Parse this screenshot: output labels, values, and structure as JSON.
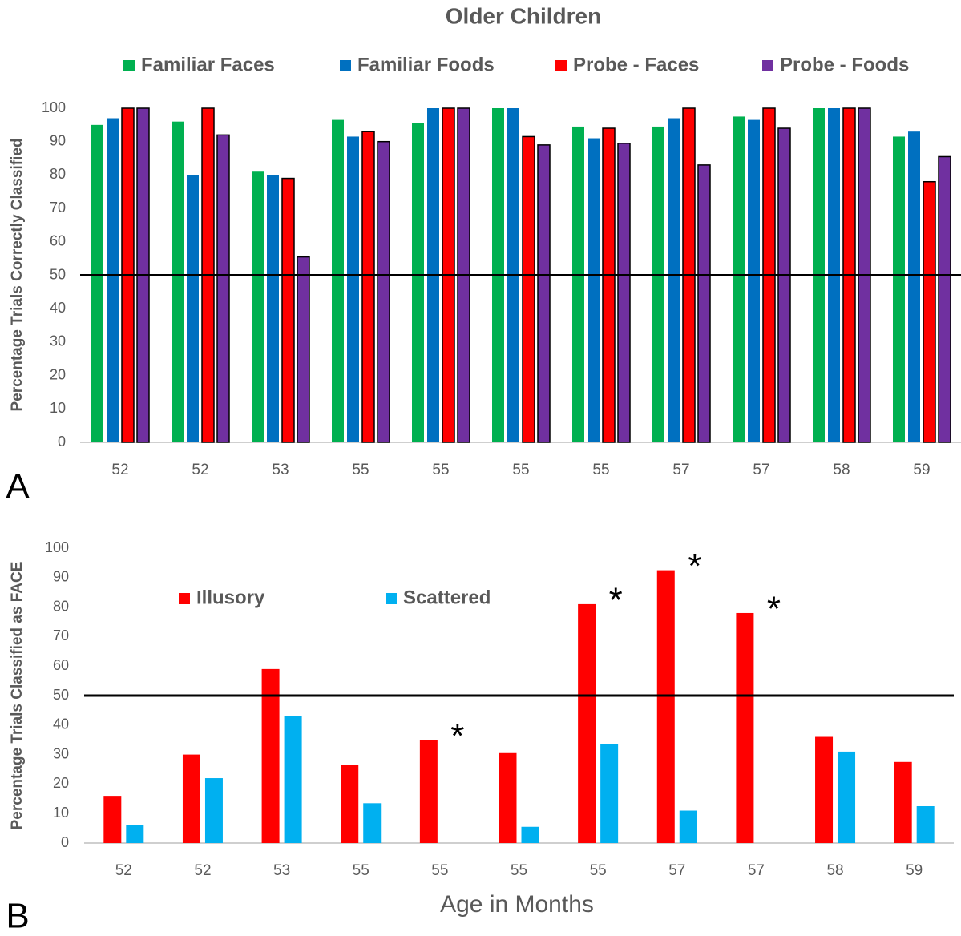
{
  "chart_data": [
    {
      "type": "bar",
      "title": "Older Children",
      "panel_label": "A",
      "y_label": "Percentage Trials Correctly Classified",
      "categories": [
        "52",
        "52",
        "53",
        "55",
        "55",
        "55",
        "55",
        "57",
        "57",
        "58",
        "59"
      ],
      "series": [
        {
          "name": "Familiar Faces",
          "color": "#00b050",
          "values": [
            95,
            96,
            81,
            96.5,
            95.5,
            100,
            94.5,
            94.5,
            97.5,
            100,
            91.5
          ]
        },
        {
          "name": "Familiar Foods",
          "color": "#0070c0",
          "values": [
            97,
            80,
            80,
            91.5,
            100,
            100,
            91,
            97,
            96.5,
            100,
            93
          ]
        },
        {
          "name": "Probe - Faces",
          "color": "#ff0000",
          "outline": "#000000",
          "values": [
            100,
            100,
            79,
            93,
            100,
            91.5,
            94,
            100,
            100,
            100,
            78
          ]
        },
        {
          "name": "Probe - Foods",
          "color": "#7030a0",
          "outline": "#000000",
          "values": [
            100,
            92,
            55.5,
            90,
            100,
            89,
            89.5,
            83,
            94,
            100,
            85.5
          ]
        }
      ],
      "ylim": [
        0,
        100
      ],
      "yticks": [
        0,
        10,
        20,
        30,
        40,
        50,
        60,
        70,
        80,
        90,
        100
      ],
      "reference_line": 50,
      "grid": false
    },
    {
      "type": "bar",
      "panel_label": "B",
      "y_label": "Percentage Trials Classified as FACE",
      "x_label": "Age in Months",
      "categories": [
        "52",
        "52",
        "53",
        "55",
        "55",
        "55",
        "55",
        "57",
        "57",
        "58",
        "59"
      ],
      "series": [
        {
          "name": "Illusory",
          "color": "#ff0000",
          "values": [
            16,
            30,
            59,
            26.5,
            35,
            30.5,
            81,
            92.5,
            78,
            36,
            27.5
          ]
        },
        {
          "name": "Scattered",
          "color": "#00b0f0",
          "values": [
            6,
            22,
            43,
            13.5,
            0,
            5.5,
            33.5,
            11,
            0,
            31,
            12.5
          ]
        }
      ],
      "annotations": [
        null,
        null,
        null,
        null,
        "*",
        null,
        "*",
        "*",
        "*",
        null,
        null
      ],
      "ylim": [
        0,
        100
      ],
      "yticks": [
        0,
        10,
        20,
        30,
        40,
        50,
        60,
        70,
        80,
        90,
        100
      ],
      "reference_line": 50,
      "grid": false
    }
  ]
}
